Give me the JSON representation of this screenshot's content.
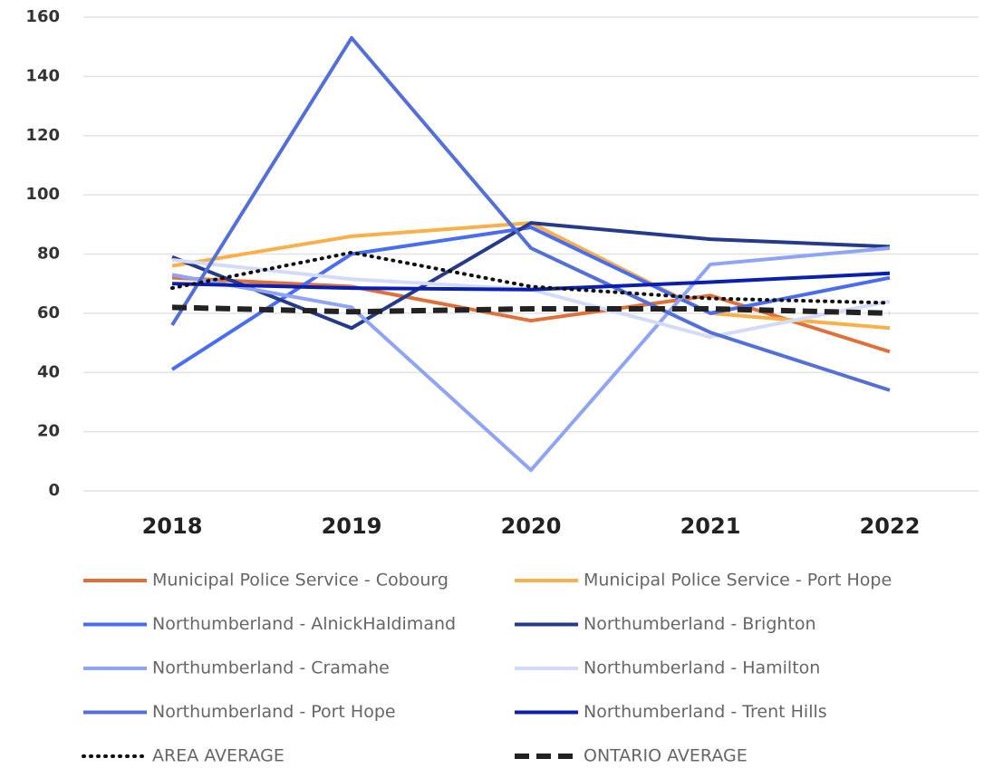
{
  "chart_data": {
    "type": "line",
    "categories": [
      "2018",
      "2019",
      "2020",
      "2021",
      "2022"
    ],
    "ylim": [
      0,
      160
    ],
    "yticks": [
      0,
      20,
      40,
      60,
      80,
      100,
      120,
      140,
      160
    ],
    "grid": true,
    "legend": "bottom",
    "series": [
      {
        "name": "Municipal Police Service - Cobourg",
        "color": "#e0703a",
        "style": "solid",
        "values": [
          72,
          69,
          57.5,
          66,
          47
        ]
      },
      {
        "name": "Municipal Police Service - Port Hope",
        "color": "#f9b04a",
        "style": "solid",
        "values": [
          76,
          86,
          90.5,
          60,
          55
        ]
      },
      {
        "name": "Northumberland - AlnickHaldimand",
        "color": "#4a6cf0",
        "style": "solid",
        "values": [
          41,
          80,
          89,
          60,
          72
        ]
      },
      {
        "name": "Northumberland - Brighton",
        "color": "#263a8c",
        "style": "solid",
        "values": [
          79,
          55,
          90.5,
          85,
          82.5
        ]
      },
      {
        "name": "Northumberland - Cramahe",
        "color": "#8fa4f5",
        "style": "solid",
        "values": [
          73,
          62,
          7,
          76.5,
          82
        ]
      },
      {
        "name": "Northumberland - Hamilton",
        "color": "#d3dbf8",
        "style": "solid",
        "values": [
          78,
          71.5,
          68,
          52,
          64
        ]
      },
      {
        "name": "Northumberland - Port Hope",
        "color": "#5470d8",
        "style": "solid",
        "values": [
          56,
          153,
          82,
          53.5,
          34
        ]
      },
      {
        "name": "Northumberland - Trent Hills",
        "color": "#0a1fb0",
        "style": "solid",
        "values": [
          70,
          68.5,
          68,
          70.5,
          73.5
        ]
      },
      {
        "name": "AREA AVERAGE",
        "color": "#111111",
        "style": "dotted",
        "values": [
          68.5,
          80.5,
          69,
          65,
          63.5
        ]
      },
      {
        "name": "ONTARIO AVERAGE",
        "color": "#222222",
        "style": "dashed",
        "values": [
          62,
          60.5,
          61.5,
          61.5,
          60
        ]
      }
    ]
  }
}
